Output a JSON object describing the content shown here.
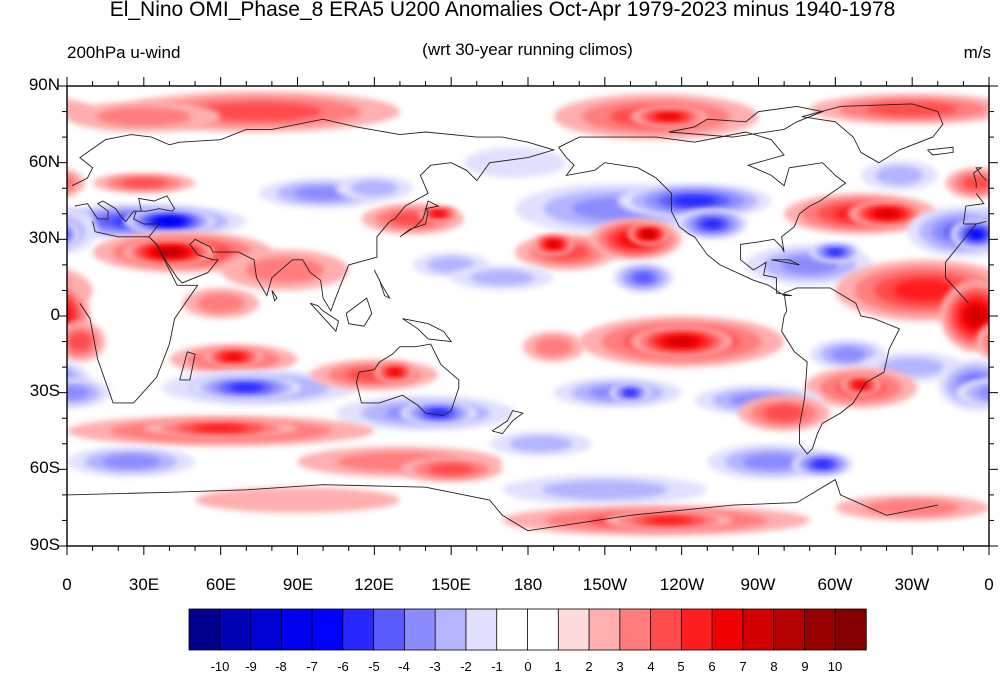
{
  "title": "El_Nino OMI_Phase_8 ERA5 U200 Anomalies Oct-Apr 1979-2023 minus 1940-1978",
  "left_string": "200hPa u-wind",
  "center_string": "(wrt 30-year running climos)",
  "right_string": "m/s",
  "lat_labels": [
    "90N",
    "60N",
    "30N",
    "0",
    "30S",
    "60S",
    "90S"
  ],
  "lon_labels": [
    "0",
    "30E",
    "60E",
    "90E",
    "120E",
    "150E",
    "180",
    "150W",
    "120W",
    "90W",
    "60W",
    "30W",
    "0"
  ],
  "colorbar": {
    "labels": [
      "-10",
      "-9",
      "-8",
      "-7",
      "-6",
      "-5",
      "-4",
      "-3",
      "-2",
      "-1",
      "0",
      "1",
      "2",
      "3",
      "4",
      "5",
      "6",
      "7",
      "8",
      "9",
      "10"
    ],
    "colors": [
      "#00008c",
      "#0000b4",
      "#0000d2",
      "#0000ee",
      "#0000ff",
      "#2828ff",
      "#5a5aff",
      "#8c8cff",
      "#b4b4ff",
      "#e1e1ff",
      "#ffffff",
      "#ffffff",
      "#ffdcdc",
      "#ffafaf",
      "#ff7d7d",
      "#ff4b4b",
      "#ff1e1e",
      "#f00000",
      "#d20000",
      "#b40000",
      "#960000",
      "#820000"
    ]
  },
  "map": {
    "projection": "cylindrical-equidistant",
    "lon_range": [
      0,
      360
    ],
    "lat_range": [
      -90,
      90
    ],
    "variable": "U200 anomaly",
    "units": "m/s"
  }
}
